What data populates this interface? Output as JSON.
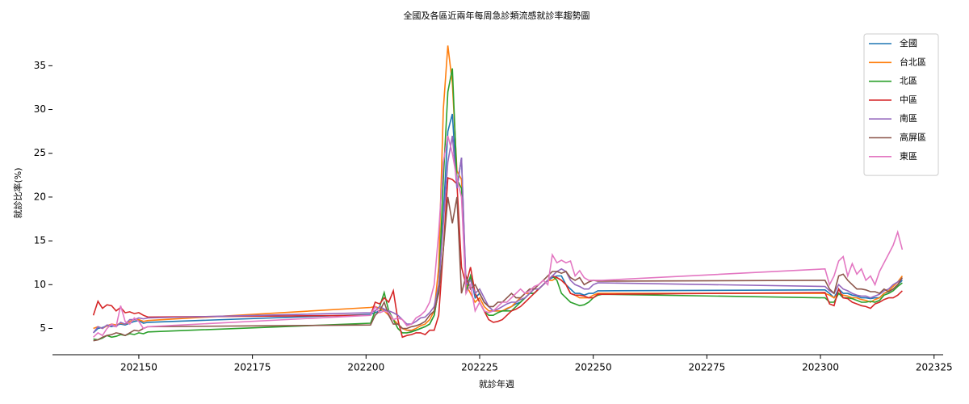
{
  "chart_data": {
    "type": "line",
    "title": "全國及各區近兩年每周急診類流感就診率趨勢圖",
    "xlabel": "就診年週",
    "ylabel": "就診比率(%)",
    "x": [
      202140,
      202141,
      202142,
      202143,
      202144,
      202145,
      202146,
      202147,
      202148,
      202149,
      202150,
      202151,
      202152,
      202201,
      202202,
      202203,
      202204,
      202205,
      202206,
      202207,
      202208,
      202209,
      202210,
      202211,
      202212,
      202213,
      202214,
      202215,
      202216,
      202217,
      202218,
      202219,
      202220,
      202221,
      202222,
      202223,
      202224,
      202225,
      202226,
      202227,
      202228,
      202229,
      202230,
      202231,
      202232,
      202233,
      202234,
      202235,
      202236,
      202237,
      202238,
      202239,
      202240,
      202241,
      202242,
      202243,
      202244,
      202245,
      202246,
      202247,
      202248,
      202249,
      202250,
      202251,
      202252,
      202301,
      202302,
      202303,
      202304,
      202305,
      202306,
      202307,
      202308,
      202309,
      202310,
      202311,
      202312,
      202313,
      202314,
      202315,
      202316,
      202317,
      202318
    ],
    "series": [
      {
        "name": "全國",
        "color": "#1f77b4",
        "values": [
          4.5,
          5.0,
          5.1,
          5.3,
          5.2,
          5.4,
          5.5,
          5.4,
          5.6,
          5.8,
          5.9,
          5.6,
          5.7,
          6.6,
          6.8,
          7.0,
          7.2,
          6.5,
          6.0,
          5.5,
          5.0,
          4.8,
          4.7,
          4.8,
          5.0,
          5.2,
          5.5,
          6.5,
          9.5,
          18,
          27.5,
          29.5,
          21,
          24.5,
          9.5,
          11,
          8.5,
          9,
          8,
          7.5,
          7,
          7,
          7,
          7.2,
          7.5,
          7.8,
          8,
          8.5,
          9,
          9,
          9.5,
          10,
          10.5,
          10.8,
          11,
          11,
          10,
          9.5,
          9,
          9,
          8.8,
          9,
          9,
          9.3,
          9.3,
          9.4,
          9,
          8.5,
          9.5,
          9,
          9,
          8.8,
          8.7,
          8.5,
          8.5,
          8.4,
          8.5,
          8.5,
          9,
          9.2,
          9.5,
          10,
          10.5
        ]
      },
      {
        "name": "台北區",
        "color": "#ff7f0e",
        "values": [
          5,
          5.2,
          5.0,
          5.3,
          5.5,
          5.4,
          5.6,
          5.5,
          5.8,
          6.0,
          6.0,
          5.8,
          5.9,
          7.4,
          7.5,
          7.3,
          7.0,
          6.5,
          6,
          5.5,
          5,
          4.8,
          4.8,
          5,
          5.3,
          5.5,
          6,
          7,
          12,
          30,
          37.3,
          33,
          23,
          22,
          10,
          9,
          8,
          8.5,
          7.5,
          7,
          7,
          7,
          7,
          7.3,
          7.5,
          8,
          8.5,
          9,
          9,
          9.5,
          9.5,
          10,
          10.5,
          10.5,
          10.8,
          10.5,
          10,
          9,
          8.8,
          8.5,
          8.5,
          8.5,
          8.8,
          9,
          9,
          9.0,
          8.8,
          8.5,
          9,
          8.8,
          8.7,
          8.5,
          8.5,
          8.3,
          8.2,
          8,
          8.3,
          8.5,
          9,
          9.3,
          9.8,
          10.3,
          11
        ]
      },
      {
        "name": "北區",
        "color": "#2ca02c",
        "values": [
          3.8,
          3.7,
          3.9,
          4.2,
          4.0,
          4.1,
          4.3,
          4.2,
          4.4,
          4.3,
          4.5,
          4.4,
          4.6,
          5.6,
          7,
          7.5,
          9.1,
          7,
          6,
          5,
          4.5,
          4.5,
          4.6,
          4.8,
          5,
          5.2,
          5.5,
          6.5,
          9.5,
          22,
          32,
          34.7,
          22,
          21,
          9,
          11,
          9,
          8,
          7,
          6.5,
          6.5,
          6.8,
          7,
          7,
          7,
          7.5,
          8,
          8.5,
          9,
          9,
          9.5,
          10,
          10.5,
          11,
          10.5,
          9,
          8.5,
          8,
          7.8,
          7.6,
          7.7,
          8,
          8.5,
          8.8,
          8.9,
          8.5,
          8,
          8,
          9,
          8.5,
          8.5,
          8.4,
          8.2,
          8,
          8,
          8.1,
          8,
          8.2,
          8.8,
          9,
          9.3,
          9.8,
          10.2
        ]
      },
      {
        "name": "中區",
        "color": "#d62728",
        "values": [
          6.5,
          8.1,
          7.3,
          7.7,
          7.6,
          7.0,
          7.4,
          6.8,
          6.9,
          6.7,
          6.8,
          6.5,
          6.3,
          6.5,
          8,
          7.8,
          8.5,
          8,
          9.3,
          6,
          4,
          4.2,
          4.3,
          4.5,
          4.5,
          4.3,
          4.8,
          4.8,
          6.5,
          14,
          22.2,
          22,
          21.5,
          12,
          10,
          12,
          9,
          8,
          7,
          6,
          5.7,
          5.8,
          6,
          6.5,
          7,
          7.2,
          7.5,
          8,
          8.5,
          9,
          9.5,
          10,
          10.5,
          11,
          10.8,
          10.5,
          10,
          9,
          8.8,
          8.8,
          8.7,
          8.5,
          8.5,
          8.9,
          8.9,
          9.1,
          7.8,
          7.6,
          9.5,
          8.5,
          8.4,
          8,
          7.8,
          7.6,
          7.5,
          7.3,
          7.8,
          8,
          8.3,
          8.5,
          8.5,
          8.8,
          9.3
        ]
      },
      {
        "name": "南區",
        "color": "#9467bd",
        "values": [
          4.5,
          5.2,
          5,
          5.4,
          5.3,
          5.2,
          5.7,
          5.5,
          6,
          6,
          6.2,
          6.1,
          6.2,
          6.8,
          7,
          7.5,
          7.2,
          7,
          6.8,
          6.5,
          6,
          5.5,
          5.5,
          5.8,
          6.2,
          6.3,
          6.8,
          7.5,
          10,
          17,
          24,
          27,
          21,
          24.5,
          10,
          10.5,
          9,
          9.5,
          8.5,
          7.5,
          7,
          7.2,
          7.5,
          7.8,
          8,
          8,
          8.3,
          8.5,
          9,
          9.5,
          9.5,
          10,
          10.5,
          11,
          11.5,
          11.8,
          11.5,
          10.5,
          10,
          9.8,
          9.5,
          9.5,
          10,
          10.2,
          10.2,
          9.8,
          9.3,
          9,
          10,
          9.5,
          9.3,
          9,
          8.8,
          8.7,
          8.7,
          8.5,
          8.7,
          8.9,
          9.3,
          9.5,
          10,
          10.3,
          10.7
        ]
      },
      {
        "name": "高屏區",
        "color": "#8c564b",
        "values": [
          3.6,
          3.7,
          4,
          4.2,
          4.3,
          4.5,
          4.4,
          4.2,
          4.5,
          4.8,
          4.7,
          5,
          5.2,
          5.4,
          6.5,
          7,
          8,
          6.5,
          5.5,
          5.5,
          5,
          5,
          5.2,
          5.3,
          5.5,
          5.8,
          6.5,
          7,
          9,
          14,
          20,
          17,
          20,
          9,
          11,
          9.5,
          10,
          9,
          8,
          7.5,
          7.5,
          8,
          8,
          8.5,
          9,
          8.5,
          8.5,
          9,
          9.5,
          9.5,
          10,
          10.5,
          11,
          11.5,
          11.5,
          11.3,
          11.5,
          10.8,
          10.5,
          10.8,
          10,
          10.3,
          10.5,
          10.4,
          10.4,
          10.5,
          9.5,
          9,
          11,
          11.2,
          10.5,
          10,
          9.5,
          9.5,
          9.4,
          9.2,
          9.2,
          9,
          9.5,
          9.2,
          9.5,
          10,
          10.8
        ]
      },
      {
        "name": "東區",
        "color": "#e377c2",
        "values": [
          4,
          4.5,
          4.2,
          5,
          5.5,
          5.2,
          7.6,
          5.8,
          5.5,
          6.2,
          5.8,
          5,
          5.2,
          6.5,
          7.5,
          6.8,
          7,
          6.8,
          6,
          6.2,
          6,
          5.3,
          5.5,
          6.2,
          6.5,
          7,
          8,
          10,
          16,
          24,
          27,
          25,
          22,
          20,
          9,
          10,
          7,
          8,
          7,
          6.8,
          7,
          7.5,
          8,
          8,
          8.5,
          9,
          9.5,
          9,
          9.3,
          9.8,
          10,
          10.5,
          10,
          13.4,
          12.5,
          12.8,
          12.5,
          12.7,
          11,
          11.6,
          10.8,
          10.5,
          10.5,
          10.5,
          10.5,
          11.8,
          10,
          11,
          12.7,
          13.2,
          11,
          12.4,
          11.2,
          11.8,
          10.5,
          11,
          10,
          11.5,
          12.5,
          13.5,
          14.5,
          16,
          14
        ]
      }
    ],
    "xlim": [
      202131,
      202327
    ],
    "ylim": [
      2,
      39
    ],
    "xticks": [
      202150,
      202175,
      202200,
      202225,
      202250,
      202275,
      202300,
      202325
    ],
    "yticks": [
      5,
      10,
      15,
      20,
      25,
      30,
      35
    ],
    "legend": "upper right"
  }
}
